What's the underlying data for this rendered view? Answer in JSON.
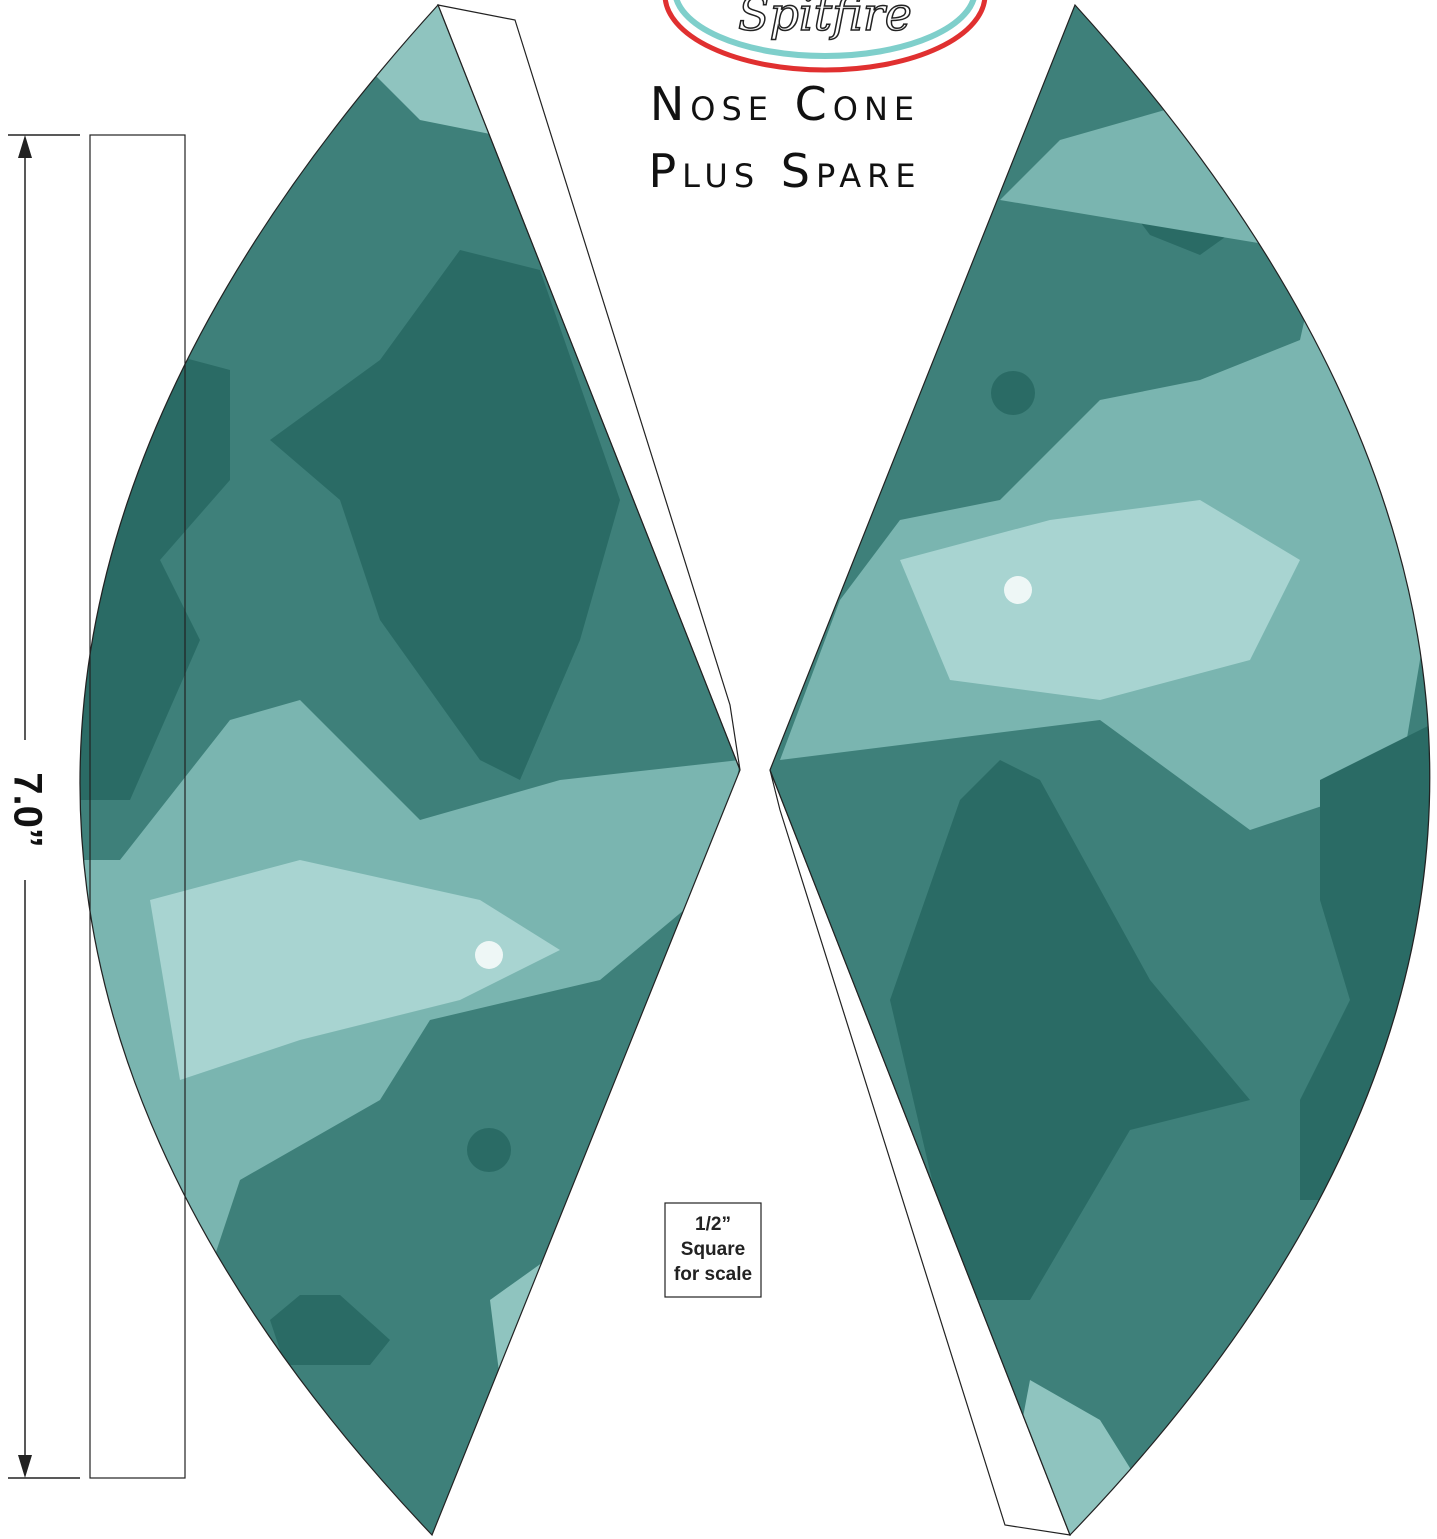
{
  "logo": "Spitfire",
  "title": [
    "Nose Cone",
    "Plus Spare"
  ],
  "dimension": "7.0”",
  "scale_box": [
    "1/2”",
    "Square",
    "for scale"
  ]
}
